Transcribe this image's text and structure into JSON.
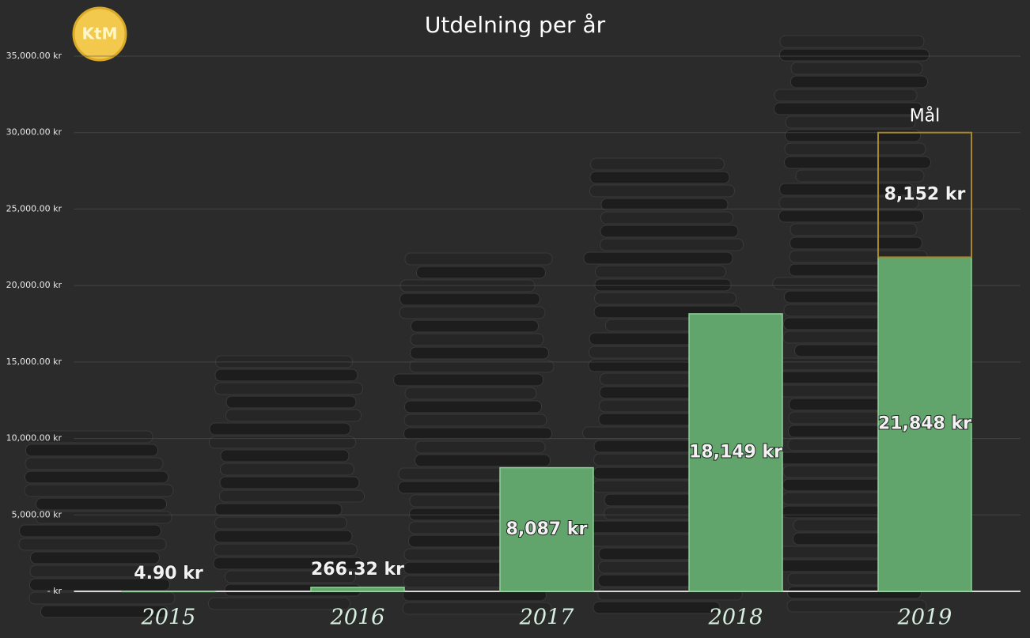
{
  "logo": "KtM",
  "chart_data": {
    "type": "bar",
    "stacked": true,
    "title": "Utdelning per år",
    "categories": [
      "2015",
      "2016",
      "2017",
      "2018",
      "2019"
    ],
    "series": [
      {
        "color": "#62a56c",
        "values": [
          4.9,
          266.32,
          8087,
          18149,
          21848
        ],
        "value_labels": [
          "4.90 kr",
          "266.32 kr",
          "8,087 kr",
          "18,149 kr",
          "21,848 kr"
        ]
      },
      {
        "name": "Mål",
        "color": "#a8862a",
        "values": [
          null,
          null,
          null,
          null,
          8152
        ],
        "value_labels": [
          null,
          null,
          null,
          null,
          "8,152 kr"
        ]
      }
    ],
    "ylim": [
      0,
      35000
    ],
    "yticks": [
      {
        "value": 0,
        "label": "-   kr"
      },
      {
        "value": 5000,
        "label": "5,000.00 kr"
      },
      {
        "value": 10000,
        "label": "10,000.00 kr"
      },
      {
        "value": 15000,
        "label": "15,000.00 kr"
      },
      {
        "value": 20000,
        "label": "20,000.00 kr"
      },
      {
        "value": 25000,
        "label": "25,000.00 kr"
      },
      {
        "value": 30000,
        "label": "30,000.00 kr"
      },
      {
        "value": 35000,
        "label": "35,000.00 kr"
      }
    ],
    "grid": true
  }
}
